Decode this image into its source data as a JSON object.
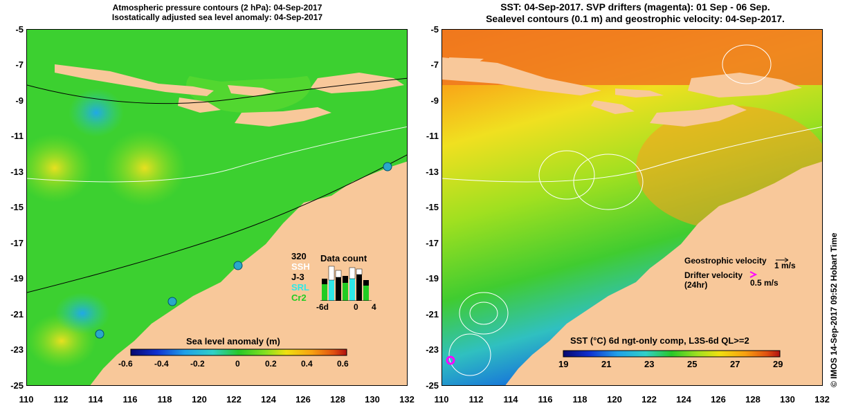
{
  "left_panel": {
    "title_line1": "Atmospheric pressure contours (2 hPa): 04-Sep-2017",
    "title_line2": "Isostatically adjusted sea level anomaly: 04-Sep-2017",
    "colorbar": {
      "label": "Sea level anomaly (m)",
      "ticks": [
        "-0.6",
        "-0.4",
        "-0.2",
        "0",
        "0.2",
        "0.4",
        "0.6"
      ]
    },
    "data_count": {
      "title": "Data count",
      "max_label": "320",
      "series": [
        "SSH",
        "J-3",
        "SRL",
        "Cr2"
      ],
      "series_colors": [
        "#ffffff",
        "#000000",
        "#2ee8e8",
        "#22cc22"
      ],
      "x_labels": [
        "-6d",
        "0",
        "4"
      ]
    }
  },
  "right_panel": {
    "title_line1": "SST: 04-Sep-2017. SVP drifters (magenta): 01 Sep - 06 Sep.",
    "title_line2": "Sealevel contours (0.1 m) and geostrophic velocity: 04-Sep-2017.",
    "colorbar": {
      "label": "SST (°C) 6d ngt-only comp, L3S-6d QL>=2",
      "ticks": [
        "19",
        "21",
        "23",
        "25",
        "27",
        "29"
      ]
    },
    "legend": {
      "geostrophic_label": "Geostrophic velocity",
      "geostrophic_value": "1 m/s",
      "drifter_label": "Drifter velocity",
      "drifter_sub": "(24hr)",
      "drifter_value": "0.5 m/s"
    },
    "credit": "© IMOS 14-Sep-2017 09:52 Hobart Time"
  },
  "axes": {
    "lat_labels": [
      "-5",
      "-7",
      "-9",
      "-11",
      "-13",
      "-15",
      "-17",
      "-19",
      "-21",
      "-23",
      "-25"
    ],
    "lon_labels": [
      "110",
      "112",
      "114",
      "116",
      "118",
      "120",
      "122",
      "124",
      "126",
      "128",
      "130",
      "132"
    ]
  },
  "colors": {
    "land": "#f8c89a",
    "sla_scale": [
      "#08086e",
      "#1030d0",
      "#20a0e8",
      "#30d0c8",
      "#28c828",
      "#80e020",
      "#f0e010",
      "#f8a010",
      "#e05010",
      "#b01010"
    ],
    "sst_scale": [
      "#08086e",
      "#1030d0",
      "#20a0e8",
      "#30d0c8",
      "#28c828",
      "#a0e020",
      "#f0e010",
      "#f8a010",
      "#e05010",
      "#b01010"
    ],
    "drifter": "#ff00ff",
    "tide_gauge": "#2aa8c8"
  }
}
